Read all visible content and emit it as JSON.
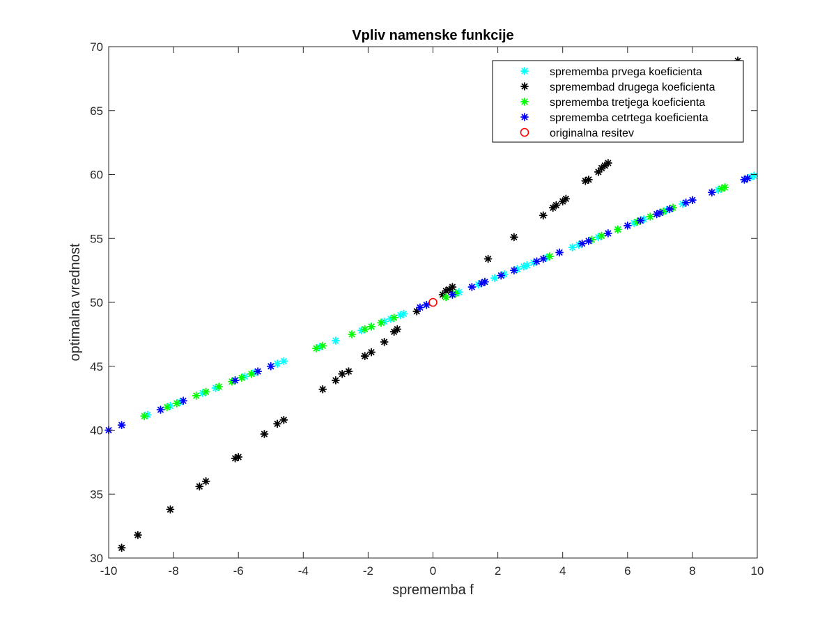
{
  "chart_data": {
    "type": "scatter",
    "title": "Vpliv namenske funkcije",
    "xlabel": "sprememba f",
    "ylabel": "optimalna vrednost",
    "xlim": [
      -10,
      10
    ],
    "ylim": [
      30,
      70
    ],
    "xticks": [
      -10,
      -8,
      -6,
      -4,
      -2,
      0,
      2,
      4,
      6,
      8,
      10
    ],
    "xtick_labels": [
      "-10",
      "-8",
      "-6",
      "-4",
      "-2",
      "0",
      "2",
      "4",
      "6",
      "8",
      "10"
    ],
    "yticks": [
      30,
      35,
      40,
      45,
      50,
      55,
      60,
      65,
      70
    ],
    "ytick_labels": [
      "30",
      "35",
      "40",
      "45",
      "50",
      "55",
      "60",
      "65",
      "70"
    ],
    "grid": false,
    "legend_position": "top-right",
    "series": [
      {
        "name": "sprememba prvega koeficienta",
        "color": "#00ffff",
        "marker": "asterisk",
        "points": [
          [
            -8.8,
            41.2
          ],
          [
            -8.1,
            41.9
          ],
          [
            -7.8,
            42.2
          ],
          [
            -7.1,
            42.9
          ],
          [
            -6.7,
            43.3
          ],
          [
            -6.1,
            43.9
          ],
          [
            -5.8,
            44.2
          ],
          [
            -5.5,
            44.5
          ],
          [
            -5.0,
            45.0
          ],
          [
            -4.8,
            45.2
          ],
          [
            -4.6,
            45.4
          ],
          [
            -3.5,
            46.5
          ],
          [
            -3.0,
            47.0
          ],
          [
            -2.2,
            47.8
          ],
          [
            -1.9,
            48.1
          ],
          [
            -1.5,
            48.5
          ],
          [
            -1.3,
            48.7
          ],
          [
            -1.0,
            49.0
          ],
          [
            -0.9,
            49.1
          ],
          [
            -0.2,
            49.8
          ],
          [
            0.6,
            50.6
          ],
          [
            0.8,
            50.8
          ],
          [
            1.4,
            51.4
          ],
          [
            1.9,
            51.9
          ],
          [
            2.2,
            52.2
          ],
          [
            2.6,
            52.6
          ],
          [
            2.8,
            52.8
          ],
          [
            2.9,
            52.9
          ],
          [
            3.1,
            53.1
          ],
          [
            3.5,
            53.5
          ],
          [
            4.3,
            54.3
          ],
          [
            4.5,
            54.5
          ],
          [
            5.1,
            55.1
          ],
          [
            5.7,
            55.7
          ],
          [
            6.2,
            56.2
          ],
          [
            6.5,
            56.5
          ],
          [
            7.2,
            57.2
          ],
          [
            7.7,
            57.7
          ],
          [
            8.8,
            58.8
          ],
          [
            9.6,
            59.6
          ],
          [
            9.8,
            59.8
          ],
          [
            9.9,
            59.9
          ]
        ]
      },
      {
        "name": "spremembad drugega koeficienta",
        "color": "#000000",
        "marker": "asterisk",
        "points": [
          [
            -9.6,
            30.8
          ],
          [
            -9.1,
            31.8
          ],
          [
            -8.1,
            33.8
          ],
          [
            -7.2,
            35.6
          ],
          [
            -7.0,
            36.0
          ],
          [
            -6.1,
            37.8
          ],
          [
            -6.0,
            37.9
          ],
          [
            -5.2,
            39.7
          ],
          [
            -4.8,
            40.5
          ],
          [
            -4.6,
            40.8
          ],
          [
            -3.4,
            43.2
          ],
          [
            -3.0,
            43.9
          ],
          [
            -2.8,
            44.4
          ],
          [
            -2.6,
            44.6
          ],
          [
            -2.1,
            45.8
          ],
          [
            -1.9,
            46.1
          ],
          [
            -1.5,
            46.9
          ],
          [
            -1.2,
            47.7
          ],
          [
            -1.1,
            47.9
          ],
          [
            -0.5,
            49.3
          ],
          [
            0.3,
            50.6
          ],
          [
            0.4,
            50.9
          ],
          [
            0.5,
            51.0
          ],
          [
            0.6,
            51.2
          ],
          [
            1.7,
            53.4
          ],
          [
            2.5,
            55.1
          ],
          [
            3.4,
            56.8
          ],
          [
            3.7,
            57.4
          ],
          [
            3.8,
            57.6
          ],
          [
            4.0,
            57.9
          ],
          [
            4.1,
            58.1
          ],
          [
            4.7,
            59.5
          ],
          [
            4.8,
            59.6
          ],
          [
            5.1,
            60.2
          ],
          [
            5.2,
            60.5
          ],
          [
            5.3,
            60.7
          ],
          [
            5.4,
            60.9
          ],
          [
            9.4,
            68.9
          ]
        ]
      },
      {
        "name": "sprememba tretjega koeficienta",
        "color": "#00ff00",
        "marker": "asterisk",
        "points": [
          [
            -8.9,
            41.1
          ],
          [
            -8.2,
            41.8
          ],
          [
            -7.9,
            42.1
          ],
          [
            -7.3,
            42.7
          ],
          [
            -7.0,
            43.0
          ],
          [
            -6.6,
            43.4
          ],
          [
            -6.2,
            43.8
          ],
          [
            -5.9,
            44.1
          ],
          [
            -5.6,
            44.4
          ],
          [
            -3.6,
            46.4
          ],
          [
            -3.4,
            46.6
          ],
          [
            -2.5,
            47.5
          ],
          [
            -2.1,
            47.9
          ],
          [
            -1.9,
            48.1
          ],
          [
            -1.6,
            48.4
          ],
          [
            -1.2,
            48.8
          ],
          [
            0.4,
            50.4
          ],
          [
            0.7,
            50.7
          ],
          [
            1.6,
            51.6
          ],
          [
            3.6,
            53.6
          ],
          [
            4.9,
            54.9
          ],
          [
            5.2,
            55.2
          ],
          [
            5.7,
            55.7
          ],
          [
            6.3,
            56.3
          ],
          [
            6.7,
            56.7
          ],
          [
            7.1,
            57.1
          ],
          [
            7.4,
            57.4
          ],
          [
            8.9,
            58.9
          ],
          [
            9.0,
            59.0
          ]
        ]
      },
      {
        "name": "sprememba cetrtega koeficienta",
        "color": "#0000ff",
        "marker": "asterisk",
        "points": [
          [
            -10.0,
            40.0
          ],
          [
            -9.6,
            40.4
          ],
          [
            -8.4,
            41.6
          ],
          [
            -7.7,
            42.3
          ],
          [
            -6.1,
            43.9
          ],
          [
            -5.4,
            44.6
          ],
          [
            -5.0,
            45.0
          ],
          [
            -0.4,
            49.6
          ],
          [
            -0.2,
            49.8
          ],
          [
            0.6,
            50.6
          ],
          [
            1.2,
            51.2
          ],
          [
            1.5,
            51.5
          ],
          [
            1.6,
            51.6
          ],
          [
            2.1,
            52.1
          ],
          [
            2.5,
            52.5
          ],
          [
            3.2,
            53.2
          ],
          [
            3.4,
            53.4
          ],
          [
            3.9,
            53.9
          ],
          [
            4.6,
            54.6
          ],
          [
            4.8,
            54.8
          ],
          [
            5.4,
            55.4
          ],
          [
            6.0,
            56.0
          ],
          [
            6.4,
            56.4
          ],
          [
            6.9,
            56.9
          ],
          [
            7.0,
            57.0
          ],
          [
            7.3,
            57.3
          ],
          [
            7.8,
            57.8
          ],
          [
            8.0,
            58.0
          ],
          [
            8.6,
            58.6
          ],
          [
            9.6,
            59.6
          ],
          [
            9.7,
            59.7
          ]
        ]
      },
      {
        "name": "originalna resitev",
        "color": "#ff0000",
        "marker": "circle",
        "points": [
          [
            0.0,
            50.0
          ]
        ]
      }
    ]
  }
}
